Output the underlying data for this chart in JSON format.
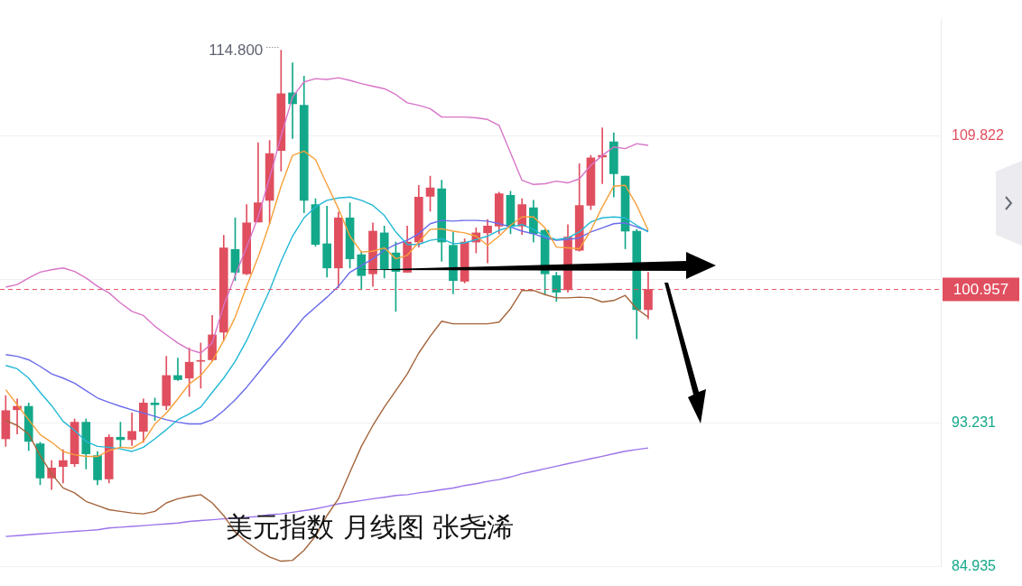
{
  "chart_data": {
    "type": "candlestick",
    "title": "美元指数 月线图 张尧浠",
    "categories": [
      null,
      null,
      null,
      null,
      null,
      null,
      null,
      null,
      null,
      null,
      null,
      null,
      null,
      null,
      null,
      null,
      null,
      null,
      null,
      null,
      null,
      null,
      null,
      null,
      null,
      null,
      null,
      null,
      null,
      null,
      null,
      null,
      null,
      null,
      null,
      null,
      null,
      null,
      null,
      null,
      null,
      null,
      null,
      null,
      null,
      null,
      null,
      null,
      null,
      null,
      null,
      null,
      null,
      null,
      null,
      null,
      null,
      null,
      null,
      null,
      null,
      null,
      null,
      null,
      null,
      null,
      null,
      null,
      null,
      null,
      null,
      null,
      null,
      null,
      null,
      null,
      null,
      null,
      null,
      null,
      null,
      null
    ],
    "ohlc": [
      [
        92.32,
        94.82,
        91.88,
        93.95
      ],
      [
        94.0,
        94.63,
        92.6,
        94.2
      ],
      [
        94.2,
        94.39,
        91.64,
        92.17
      ],
      [
        92.03,
        92.12,
        89.66,
        90.05
      ],
      [
        90.05,
        91.06,
        89.38,
        90.63
      ],
      [
        90.72,
        91.69,
        89.76,
        91.06
      ],
      [
        90.87,
        93.47,
        90.72,
        93.28
      ],
      [
        93.28,
        93.47,
        90.58,
        91.45
      ],
      [
        91.35,
        91.59,
        89.66,
        89.95
      ],
      [
        90.0,
        92.56,
        89.76,
        92.41
      ],
      [
        92.41,
        93.28,
        91.83,
        92.27
      ],
      [
        92.27,
        93.81,
        91.93,
        92.75
      ],
      [
        92.75,
        94.63,
        92.12,
        94.39
      ],
      [
        94.39,
        94.68,
        93.38,
        94.29
      ],
      [
        94.24,
        97.09,
        94.0,
        95.98
      ],
      [
        95.98,
        96.99,
        95.69,
        95.74
      ],
      [
        95.83,
        97.57,
        94.77,
        96.75
      ],
      [
        96.8,
        97.86,
        95.25,
        96.85
      ],
      [
        96.89,
        99.45,
        96.8,
        98.33
      ],
      [
        98.48,
        104.09,
        98.0,
        103.36
      ],
      [
        103.27,
        105.1,
        101.47,
        101.95
      ],
      [
        101.86,
        105.87,
        101.81,
        104.81
      ],
      [
        104.86,
        109.44,
        104.86,
        105.97
      ],
      [
        106.11,
        109.58,
        104.76,
        108.81
      ],
      [
        109.0,
        114.8,
        107.8,
        112.28
      ],
      [
        112.33,
        114.07,
        109.68,
        111.7
      ],
      [
        111.61,
        113.29,
        105.39,
        106.11
      ],
      [
        105.87,
        106.21,
        103.46,
        103.56
      ],
      [
        103.6,
        105.77,
        101.67,
        102.2
      ],
      [
        102.2,
        105.44,
        101.04,
        105.1
      ],
      [
        105.1,
        105.97,
        102.2,
        102.73
      ],
      [
        102.97,
        103.17,
        100.94,
        101.76
      ],
      [
        101.86,
        104.81,
        101.14,
        104.33
      ],
      [
        104.23,
        104.62,
        101.62,
        102.15
      ],
      [
        103.07,
        103.7,
        99.69,
        102.0
      ],
      [
        101.95,
        104.62,
        101.95,
        103.7
      ],
      [
        103.7,
        106.98,
        103.41,
        106.3
      ],
      [
        106.35,
        107.51,
        105.48,
        106.83
      ],
      [
        106.78,
        107.27,
        102.59,
        103.7
      ],
      [
        103.51,
        104.28,
        100.71,
        101.47
      ],
      [
        101.43,
        103.89,
        101.33,
        103.7
      ],
      [
        103.7,
        104.52,
        103.07,
        104.23
      ],
      [
        104.23,
        105.0,
        102.49,
        104.62
      ],
      [
        104.62,
        106.59,
        104.18,
        106.49
      ],
      [
        106.4,
        106.64,
        104.18,
        104.62
      ],
      [
        104.62,
        106.21,
        104.13,
        105.87
      ],
      [
        105.68,
        106.11,
        103.7,
        104.18
      ],
      [
        104.38,
        104.43,
        100.66,
        101.86
      ],
      [
        101.76,
        101.95,
        100.27,
        100.8
      ],
      [
        100.94,
        104.71,
        100.8,
        103.99
      ],
      [
        103.22,
        108.23,
        103.17,
        105.82
      ],
      [
        105.82,
        108.71,
        105.58,
        108.57
      ],
      [
        108.62,
        110.31,
        107.07,
        108.71
      ],
      [
        109.49,
        110.02,
        106.3,
        107.65
      ],
      [
        107.51,
        107.51,
        103.31,
        104.33
      ],
      [
        104.33,
        104.43,
        98.1,
        99.79
      ],
      [
        99.79,
        101.95,
        99.26,
        100.957
      ],
      null,
      null,
      null,
      null,
      null,
      null,
      null,
      null,
      null,
      null,
      null,
      null,
      null,
      null,
      null,
      null,
      null,
      null,
      null,
      null,
      null,
      null,
      null,
      null,
      null
    ],
    "series": [
      {
        "type": "line",
        "color": "#f7a03a",
        "values": [
          95.16,
          94.29,
          93.42,
          92.56,
          92.12,
          91.59,
          91.4,
          91.3,
          91.3,
          91.64,
          91.83,
          91.78,
          92.17,
          93.18,
          93.81,
          94.63,
          95.5,
          95.98,
          96.8,
          98.0,
          99.35,
          101.14,
          102.83,
          104.76,
          106.93,
          108.71,
          108.96,
          108.47,
          107.03,
          105.63,
          104.04,
          103.12,
          103.17,
          103.36,
          102.73,
          102.93,
          103.7,
          104.43,
          104.47,
          104.33,
          104.23,
          104.04,
          103.51,
          104.04,
          104.67,
          105.15,
          105.15,
          104.52,
          103.41,
          103.36,
          103.31,
          104.38,
          105.73,
          106.93,
          106.98,
          105.82,
          104.38,
          null,
          null,
          null,
          null,
          null,
          null,
          null,
          null,
          null,
          null,
          null,
          null,
          null,
          null,
          null,
          null,
          null,
          null,
          null,
          null,
          null,
          null,
          null,
          null,
          null
        ]
      },
      {
        "type": "line",
        "color": "#22b8d6",
        "values": [
          96.56,
          96.37,
          95.83,
          95.01,
          94.24,
          93.33,
          92.8,
          92.17,
          91.88,
          91.83,
          91.74,
          91.59,
          91.83,
          92.32,
          92.85,
          93.42,
          93.76,
          94.15,
          95.01,
          95.83,
          96.8,
          98.0,
          99.45,
          100.9,
          102.59,
          104.04,
          105.1,
          105.73,
          106.11,
          106.25,
          106.3,
          106.11,
          105.82,
          105.24,
          104.28,
          103.56,
          103.56,
          103.8,
          103.89,
          103.6,
          103.65,
          103.84,
          104.04,
          104.38,
          104.57,
          104.71,
          104.43,
          104.04,
          103.84,
          103.94,
          104.28,
          104.86,
          105.1,
          105.15,
          105.1,
          104.67,
          104.28,
          null,
          null,
          null,
          null,
          null,
          null,
          null,
          null,
          null,
          null,
          null,
          null,
          null,
          null,
          null,
          null,
          null,
          null,
          null,
          null,
          null,
          null,
          null,
          null,
          null
        ]
      },
      {
        "type": "line",
        "color": "#6b6bec",
        "values": [
          97.19,
          97.09,
          96.89,
          96.51,
          96.07,
          95.83,
          95.54,
          95.11,
          94.68,
          94.43,
          94.2,
          94.0,
          93.81,
          93.62,
          93.42,
          93.28,
          93.18,
          93.18,
          93.42,
          93.95,
          94.58,
          95.3,
          96.12,
          96.94,
          97.71,
          98.53,
          99.35,
          99.93,
          100.51,
          101.14,
          101.95,
          102.34,
          102.73,
          103.22,
          103.56,
          103.8,
          104.18,
          104.76,
          104.95,
          104.91,
          104.95,
          104.95,
          104.91,
          104.76,
          104.57,
          104.33,
          104.18,
          103.94,
          103.8,
          103.84,
          103.94,
          104.28,
          104.52,
          104.76,
          104.81,
          104.57,
          104.33,
          null,
          null,
          null,
          null,
          null,
          null,
          null,
          null,
          null,
          null,
          null,
          null,
          null,
          null,
          null,
          null,
          null,
          null,
          null,
          null,
          null,
          null,
          null,
          null,
          null
        ]
      },
      {
        "type": "line",
        "color": "#d874c8",
        "values": [
          101.09,
          101.24,
          101.62,
          101.96,
          102.1,
          102.2,
          102.0,
          101.62,
          101.14,
          100.76,
          100.18,
          99.69,
          99.45,
          98.83,
          98.34,
          97.86,
          97.48,
          97.28,
          97.86,
          100.03,
          101.76,
          103.41,
          105.15,
          107.41,
          109.82,
          112.09,
          112.96,
          113.15,
          113.1,
          113.2,
          113.05,
          112.86,
          112.71,
          112.57,
          112.23,
          111.75,
          111.61,
          111.41,
          110.93,
          110.93,
          110.93,
          110.88,
          110.79,
          110.45,
          108.86,
          107.27,
          107.03,
          107.07,
          107.22,
          107.12,
          107.36,
          108.13,
          108.71,
          109.2,
          109.1,
          109.39,
          109.29,
          null,
          null,
          null,
          null,
          null,
          null,
          null,
          null,
          null,
          null,
          null,
          null,
          null,
          null,
          null,
          null,
          null,
          null,
          null,
          null,
          null,
          null,
          null,
          null,
          null
        ]
      },
      {
        "type": "line",
        "color": "#a5653c",
        "values": [
          93.38,
          93.09,
          92.6,
          91.35,
          90.29,
          89.48,
          89.19,
          88.7,
          88.46,
          88.22,
          88.12,
          88.03,
          87.98,
          88.12,
          88.61,
          88.85,
          88.99,
          89.09,
          88.61,
          87.88,
          86.92,
          86.35,
          85.87,
          85.48,
          85.24,
          85.29,
          85.87,
          86.69,
          87.88,
          88.85,
          90.39,
          91.88,
          93.09,
          94.15,
          95.11,
          96.07,
          97.28,
          98.25,
          99.12,
          98.97,
          98.97,
          98.97,
          98.97,
          99.07,
          99.84,
          100.9,
          100.9,
          100.66,
          100.47,
          100.47,
          100.51,
          100.47,
          100.23,
          100.32,
          100.61,
          99.84,
          99.36,
          null,
          null,
          null,
          null,
          null,
          null,
          null,
          null,
          null,
          null,
          null,
          null,
          null,
          null,
          null,
          null,
          null,
          null,
          null,
          null,
          null,
          null,
          null,
          null,
          null
        ]
      },
      {
        "type": "line",
        "color": "#9b74ea",
        "values": [
          86.67,
          86.72,
          86.77,
          86.82,
          86.87,
          86.92,
          86.97,
          87.01,
          87.06,
          87.16,
          87.21,
          87.25,
          87.3,
          87.35,
          87.4,
          87.45,
          87.54,
          87.59,
          87.64,
          87.69,
          87.74,
          87.78,
          87.83,
          87.93,
          87.98,
          88.07,
          88.17,
          88.27,
          88.41,
          88.56,
          88.65,
          88.75,
          88.85,
          88.94,
          89.04,
          89.09,
          89.19,
          89.28,
          89.38,
          89.47,
          89.62,
          89.72,
          89.86,
          89.96,
          90.11,
          90.3,
          90.44,
          90.59,
          90.73,
          90.88,
          91.02,
          91.17,
          91.31,
          91.46,
          91.6,
          91.7,
          91.79,
          null,
          null,
          null,
          null,
          null,
          null,
          null,
          null,
          null,
          null,
          null,
          null,
          null,
          null,
          null,
          null,
          null,
          null,
          null,
          null,
          null,
          null,
          null,
          null,
          null
        ]
      }
    ],
    "ylim": [
      84.935,
      116.57
    ],
    "yticks": [
      84.935,
      93.231,
      {
        "value": 101.526,
        "label": null
      },
      109.822
    ],
    "grid": "y",
    "legend": false,
    "tick_labels": "y",
    "ref_lines": [
      {
        "axis": "y",
        "value": 100.957,
        "label": "100.957",
        "color": "#e04f5f",
        "line_style": "dashed"
      }
    ],
    "annotations": [
      "114.800"
    ]
  }
}
